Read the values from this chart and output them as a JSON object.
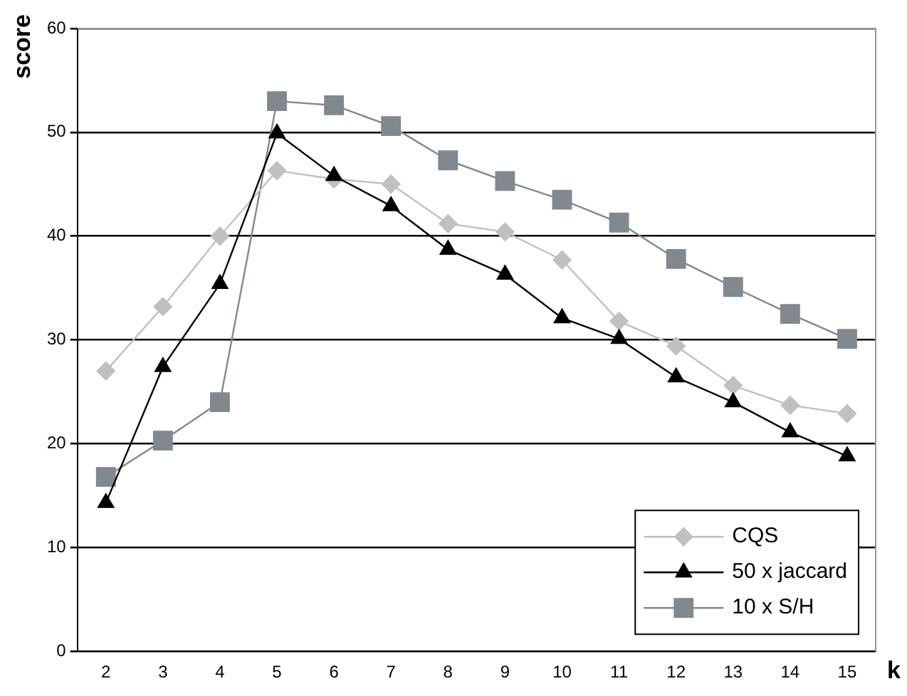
{
  "chart_data": {
    "type": "line",
    "xlabel": "k",
    "ylabel": "score",
    "categories": [
      "2",
      "3",
      "4",
      "5",
      "6",
      "7",
      "8",
      "9",
      "10",
      "11",
      "12",
      "13",
      "14",
      "15"
    ],
    "series": [
      {
        "name": "CQS",
        "color": "#c0c0c0",
        "marker": "diamond",
        "values": [
          27,
          33.2,
          40,
          46.3,
          45.5,
          45,
          41.2,
          40.4,
          37.7,
          31.8,
          29.4,
          25.6,
          23.7,
          22.9
        ]
      },
      {
        "name": "50 x jaccard",
        "color": "#000000",
        "marker": "triangle",
        "values": [
          14.3,
          27.4,
          35.4,
          49.9,
          45.8,
          42.9,
          38.7,
          36.3,
          32.1,
          30.1,
          26.4,
          24,
          21.1,
          18.8
        ]
      },
      {
        "name": "10 x S/H",
        "color": "#808890",
        "marker": "square",
        "values": [
          16.8,
          20.3,
          24,
          53,
          52.6,
          50.6,
          47.3,
          45.3,
          43.5,
          41.3,
          37.8,
          35.1,
          32.5,
          30.1
        ]
      }
    ],
    "ylim": [
      0,
      60
    ],
    "yticks": [
      0,
      10,
      20,
      30,
      40,
      50,
      60
    ],
    "grid": "y",
    "legend": "bottom right"
  }
}
